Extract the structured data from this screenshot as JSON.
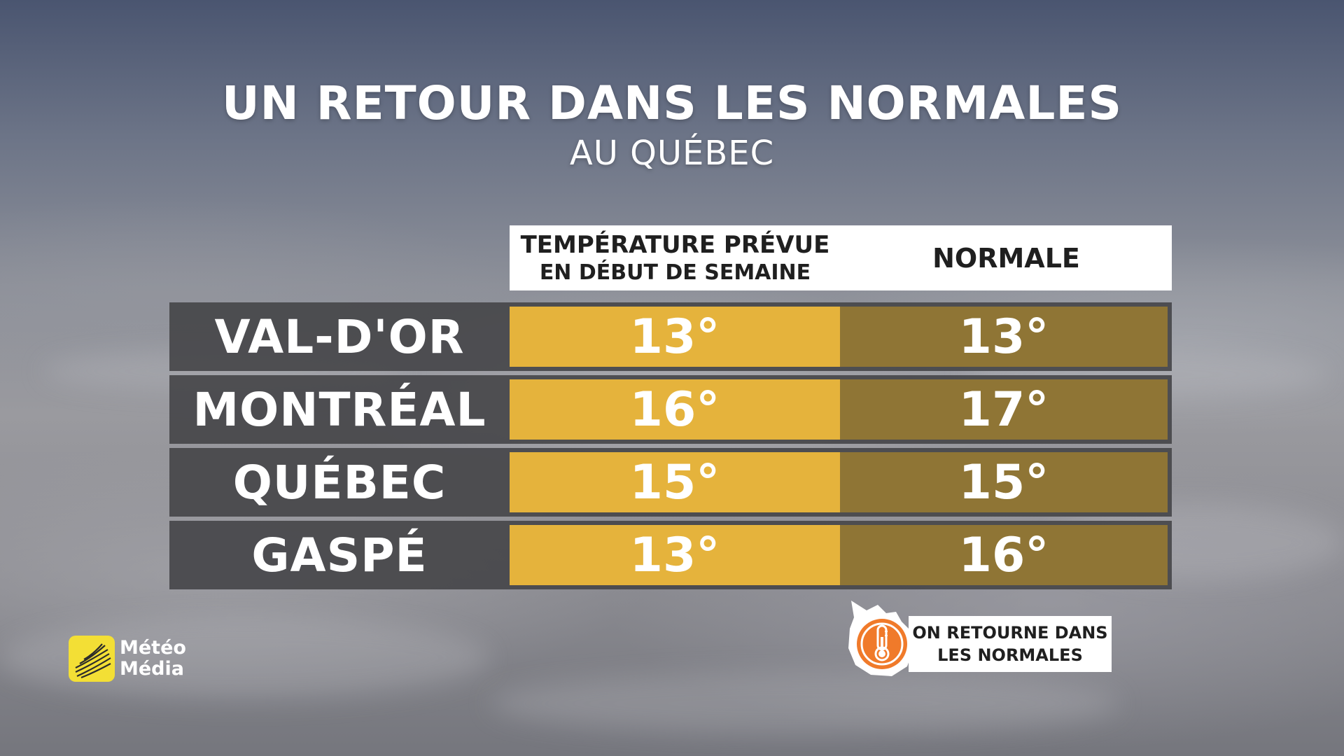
{
  "title": "UN RETOUR DANS LES NORMALES",
  "subtitle": "AU QUÉBEC",
  "headers": {
    "forecast_line1": "TEMPÉRATURE PRÉVUE",
    "forecast_line2": "EN DÉBUT DE SEMAINE",
    "normal": "NORMALE"
  },
  "rows": [
    {
      "city": "VAL-D'OR",
      "forecast": "13°",
      "normal": "13°"
    },
    {
      "city": "MONTRÉAL",
      "forecast": "16°",
      "normal": "17°"
    },
    {
      "city": "QUÉBEC",
      "forecast": "15°",
      "normal": "15°"
    },
    {
      "city": "GASPÉ",
      "forecast": "13°",
      "normal": "16°"
    }
  ],
  "note": {
    "line1": "ON RETOURNE DANS",
    "line2": "LES NORMALES",
    "icon": "thermometer-icon"
  },
  "logo": {
    "line1": "Météo",
    "line2": "Média"
  },
  "colors": {
    "forecast_cell": "#e5b33c",
    "normal_cell": "#8f7535",
    "city_cell": "#46464a",
    "note_icon": "#f07a2a",
    "logo_badge": "#f3df35"
  }
}
